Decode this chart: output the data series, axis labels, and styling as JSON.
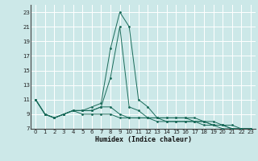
{
  "title": "",
  "xlabel": "Humidex (Indice chaleur)",
  "bg_color": "#cce8e8",
  "grid_color": "#ffffff",
  "line_color": "#1a6b5a",
  "xlim": [
    -0.5,
    23.5
  ],
  "ylim": [
    7,
    24
  ],
  "xticks": [
    0,
    1,
    2,
    3,
    4,
    5,
    6,
    7,
    8,
    9,
    10,
    11,
    12,
    13,
    14,
    15,
    16,
    17,
    18,
    19,
    20,
    21,
    22,
    23
  ],
  "yticks": [
    7,
    9,
    11,
    13,
    15,
    17,
    19,
    21,
    23
  ],
  "series": [
    {
      "x": [
        0,
        1,
        2,
        3,
        4,
        5,
        6,
        7,
        8,
        9,
        10,
        11,
        12,
        13,
        14,
        15,
        16,
        17,
        18,
        19,
        20,
        21,
        22,
        23
      ],
      "y": [
        11,
        9,
        8.5,
        9,
        9.5,
        9.5,
        10,
        10.5,
        18,
        23,
        21,
        11,
        10,
        8.5,
        8.5,
        8.5,
        8.5,
        8.5,
        8,
        8,
        7.5,
        7.5,
        7,
        7
      ]
    },
    {
      "x": [
        0,
        1,
        2,
        3,
        4,
        5,
        6,
        7,
        8,
        9,
        10,
        11,
        12,
        13,
        14,
        15,
        16,
        17,
        18,
        19,
        20,
        21,
        22,
        23
      ],
      "y": [
        11,
        9,
        8.5,
        9,
        9.5,
        9.5,
        9.5,
        10,
        14,
        21,
        10,
        9.5,
        8.5,
        8.5,
        8,
        8,
        8,
        8,
        8,
        7.5,
        7.5,
        7,
        7,
        7
      ]
    },
    {
      "x": [
        0,
        1,
        2,
        3,
        4,
        5,
        6,
        7,
        8,
        9,
        10,
        11,
        12,
        13,
        14,
        15,
        16,
        17,
        18,
        19,
        20,
        21,
        22,
        23
      ],
      "y": [
        11,
        9,
        8.5,
        9,
        9.5,
        9.5,
        9.5,
        10,
        10,
        9,
        8.5,
        8.5,
        8.5,
        8.5,
        8.5,
        8.5,
        8.5,
        8,
        8,
        7.5,
        7.5,
        7,
        7,
        7
      ]
    },
    {
      "x": [
        0,
        1,
        2,
        3,
        4,
        5,
        6,
        7,
        8,
        9,
        10,
        11,
        12,
        13,
        14,
        15,
        16,
        17,
        18,
        19,
        20,
        21,
        22,
        23
      ],
      "y": [
        11,
        9,
        8.5,
        9,
        9.5,
        9,
        9,
        9,
        9,
        8.5,
        8.5,
        8.5,
        8.5,
        8,
        8,
        8,
        8,
        8,
        7.5,
        7.5,
        7,
        7,
        7,
        7
      ]
    }
  ]
}
